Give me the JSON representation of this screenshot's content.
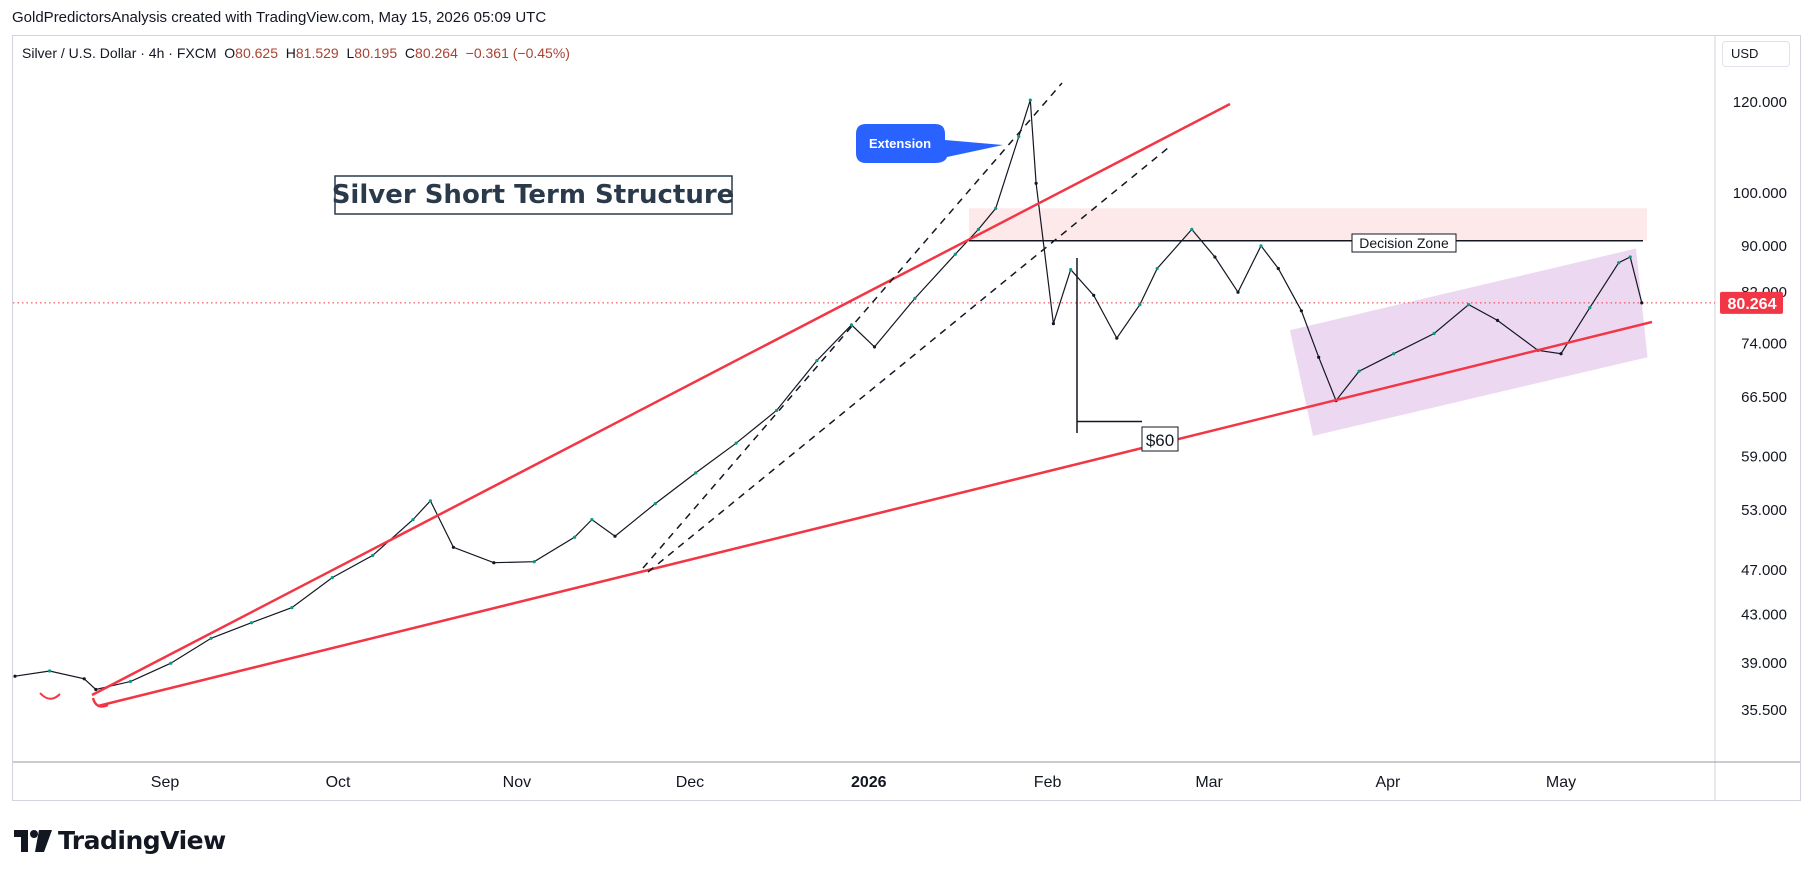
{
  "header": {
    "credit": "GoldPredictorsAnalysis created with TradingView.com, May 15, 2026 05:09 UTC"
  },
  "legend": {
    "symbol": "Silver / U.S. Dollar · 4h · FXCM",
    "open_label": "O",
    "open": "80.625",
    "high_label": "H",
    "high": "81.529",
    "low_label": "L",
    "low": "80.195",
    "close_label": "C",
    "close": "80.264",
    "change": "−0.361 (−0.45%)"
  },
  "currency": "USD",
  "title_box": "Silver Short Term Structure",
  "annotations": {
    "extension": "Extension",
    "decision_zone": "Decision Zone",
    "sixty": "$60"
  },
  "last_price_label": "80.264",
  "logo_text": "TradingView",
  "colors": {
    "up": "#089981",
    "down": "#131722",
    "trendline": "#f23645",
    "channel": "#e1bee7",
    "zone": "#fde8ea",
    "callout": "#2962ff"
  },
  "chart_data": {
    "type": "line",
    "title": "Silver Short Term Structure",
    "xlabel": "",
    "ylabel": "USD",
    "y_scale": "log",
    "ylim": [
      32.0,
      137.0
    ],
    "y_ticks": [
      "120.000",
      "100.000",
      "90.000",
      "82.000",
      "74.000",
      "66.500",
      "59.000",
      "53.000",
      "47.000",
      "43.000",
      "39.000",
      "35.500"
    ],
    "x_ticks": [
      "Sep",
      "Oct",
      "Nov",
      "Dec",
      "2026",
      "Feb",
      "Mar",
      "Apr",
      "May"
    ],
    "x_tick_dates": [
      "2025-09-01",
      "2025-10-01",
      "2025-11-01",
      "2025-12-01",
      "2026-01-01",
      "2026-02-01",
      "2026-03-01",
      "2026-04-01",
      "2026-05-01"
    ],
    "series": [
      {
        "x": [
          "2025-08-06",
          "2025-08-12",
          "2025-08-18",
          "2025-08-20",
          "2025-08-26",
          "2025-09-02",
          "2025-09-09",
          "2025-09-16",
          "2025-09-23",
          "2025-09-30",
          "2025-10-07",
          "2025-10-14",
          "2025-10-17",
          "2025-10-21",
          "2025-10-28",
          "2025-11-04",
          "2025-11-11",
          "2025-11-14",
          "2025-11-18",
          "2025-11-25",
          "2025-12-02",
          "2025-12-09",
          "2025-12-16",
          "2025-12-23",
          "2025-12-29",
          "2026-01-02",
          "2026-01-09",
          "2026-01-16",
          "2026-01-20",
          "2026-01-23",
          "2026-01-27",
          "2026-01-29",
          "2026-01-30",
          "2026-02-02",
          "2026-02-05",
          "2026-02-09",
          "2026-02-13",
          "2026-02-17",
          "2026-02-20",
          "2026-02-26",
          "2026-03-02",
          "2026-03-06",
          "2026-03-10",
          "2026-03-13",
          "2026-03-17",
          "2026-03-20",
          "2026-03-23",
          "2026-03-27",
          "2026-04-02",
          "2026-04-09",
          "2026-04-15",
          "2026-04-20",
          "2026-04-27",
          "2026-05-01",
          "2026-05-06",
          "2026-05-11",
          "2026-05-13",
          "2026-05-15"
        ],
        "values": [
          38.0,
          38.4,
          37.8,
          37.0,
          37.6,
          39.0,
          41.0,
          42.3,
          43.6,
          46.3,
          48.4,
          52.0,
          54.0,
          49.2,
          47.7,
          47.8,
          50.2,
          52.0,
          50.3,
          53.7,
          57.1,
          60.6,
          64.7,
          71.5,
          76.8,
          73.5,
          81.0,
          88.5,
          93.0,
          97.0,
          112.0,
          120.5,
          102.0,
          77.0,
          85.8,
          81.5,
          74.8,
          80.0,
          86.0,
          93.0,
          88.0,
          82.0,
          90.0,
          86.0,
          79.0,
          72.0,
          66.0,
          70.0,
          72.5,
          75.5,
          80.0,
          77.5,
          73.0,
          72.5,
          79.5,
          87.0,
          88.0,
          80.264
        ]
      }
    ],
    "reference_levels": {
      "decision_zone": 90.9,
      "sixty_level": 63.3,
      "last_price": 80.264
    }
  }
}
